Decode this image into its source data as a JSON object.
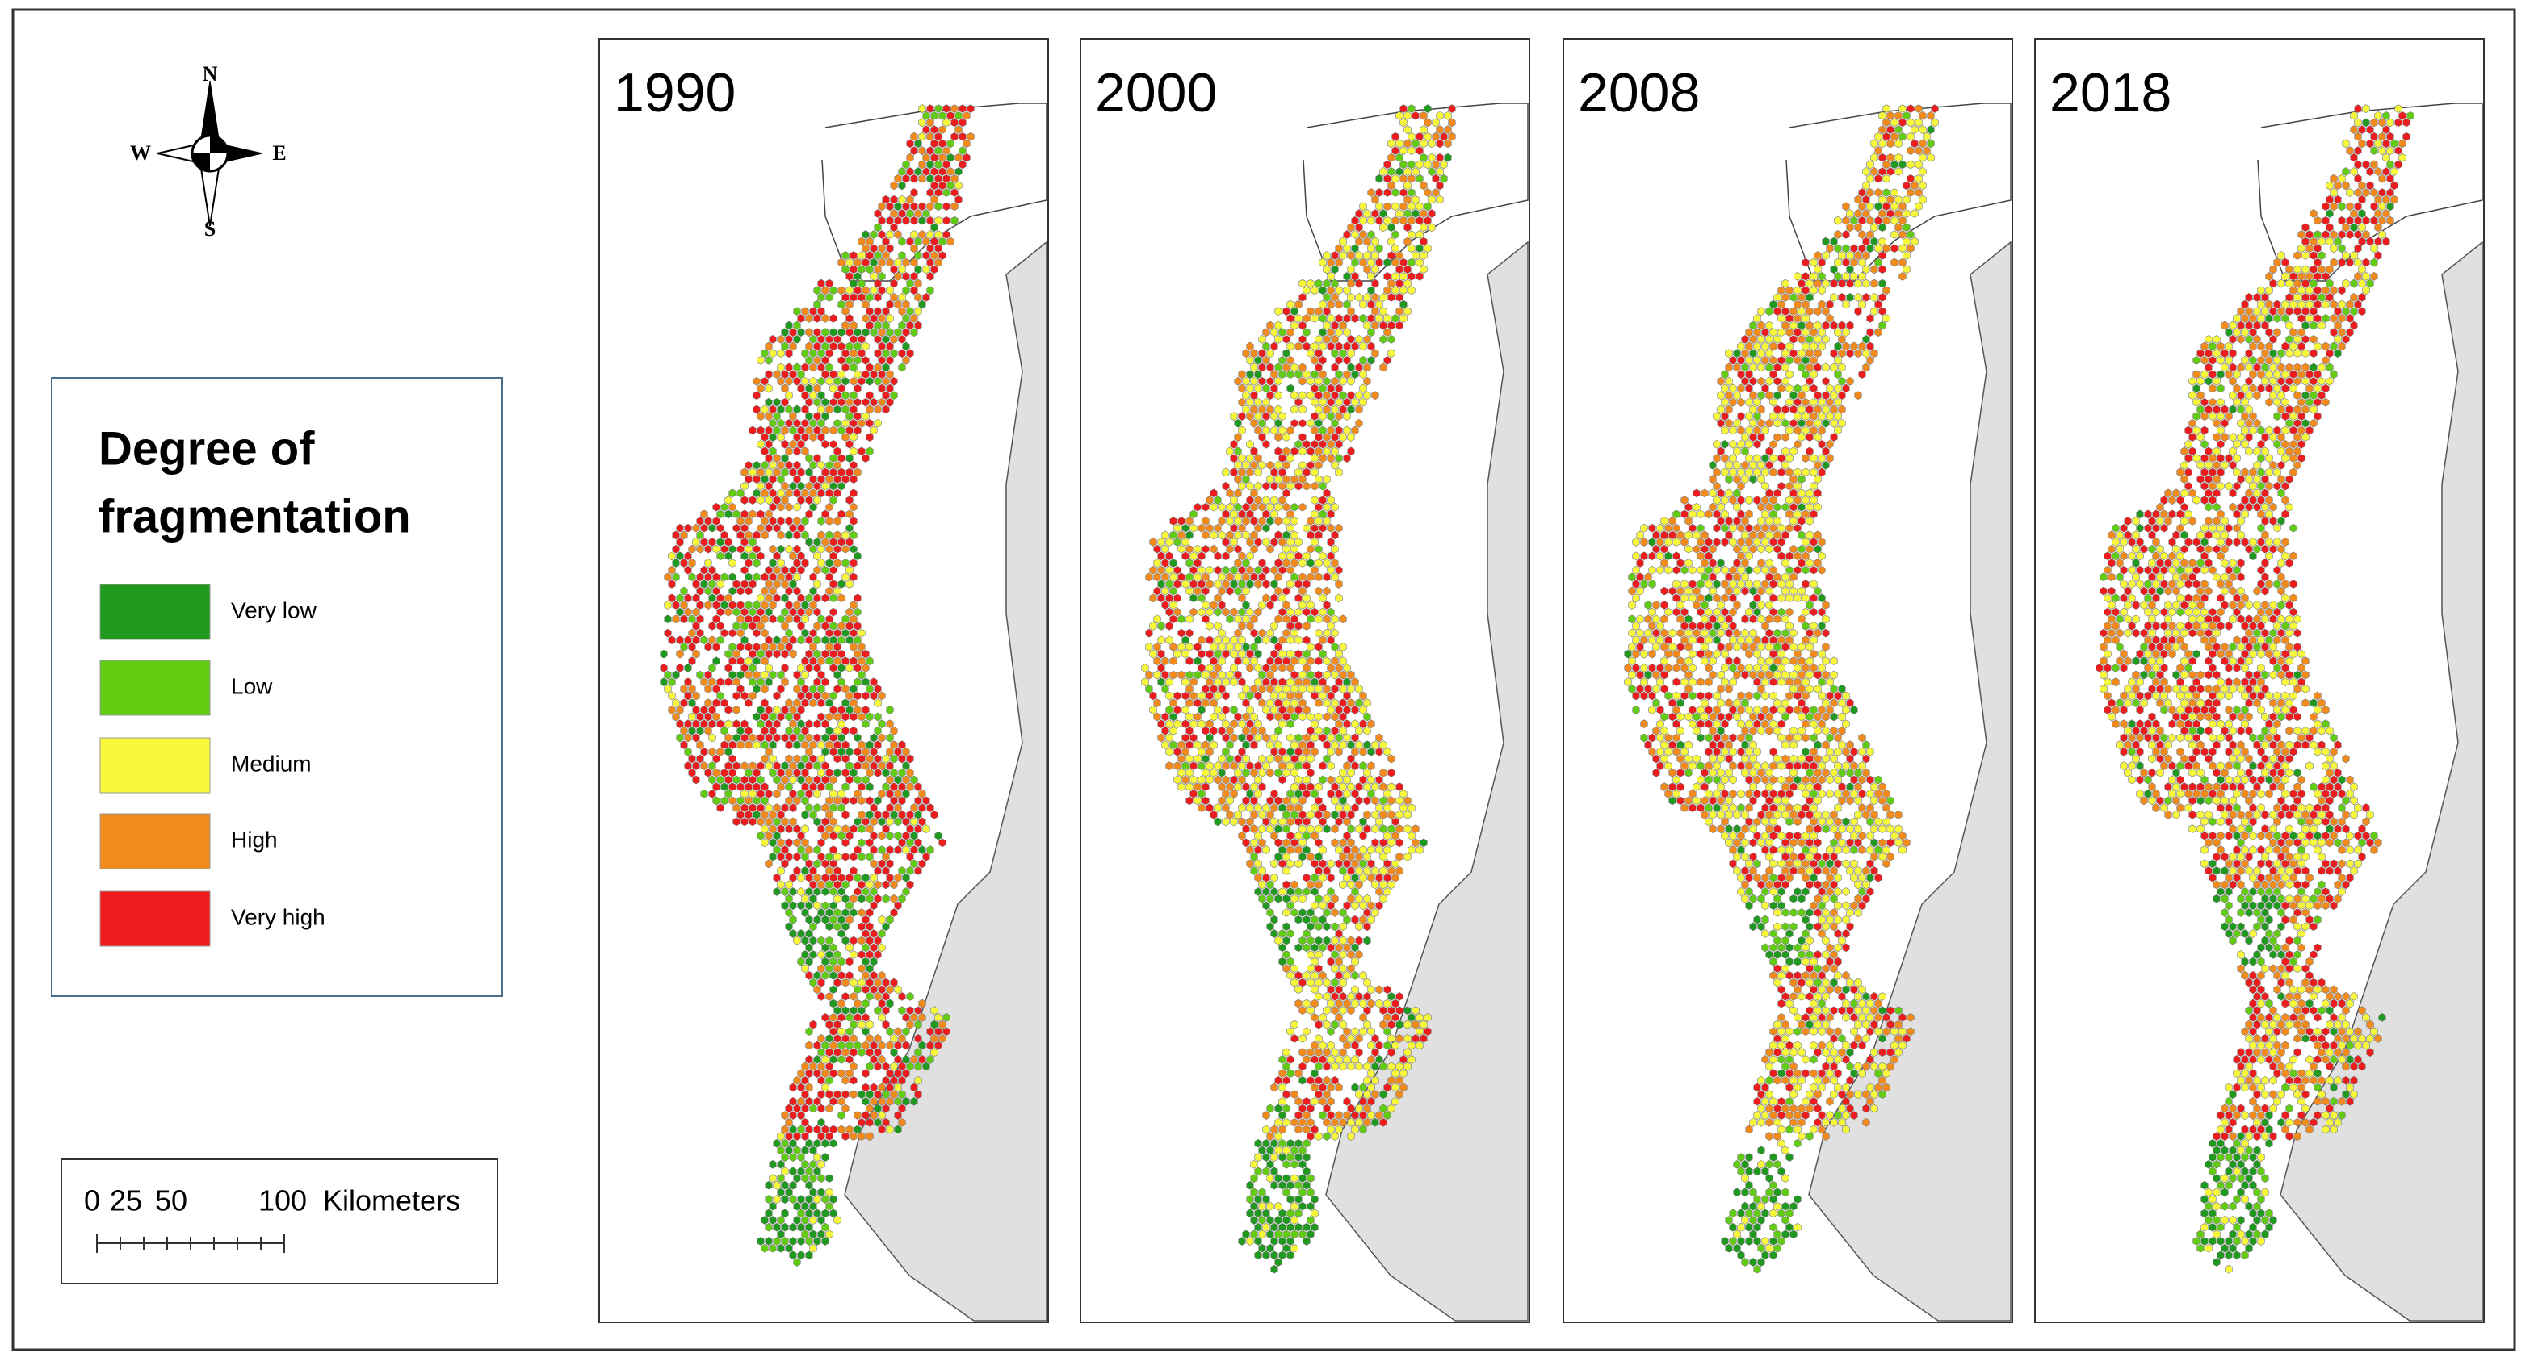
{
  "compass": {
    "north": "N",
    "south": "S",
    "east": "E",
    "west": "W"
  },
  "legend": {
    "title_lines": [
      "Degree of",
      "fragmentation"
    ],
    "items": [
      {
        "label": "Very low",
        "color": "#1f9a1f"
      },
      {
        "label": "Low",
        "color": "#62cc12"
      },
      {
        "label": "Medium",
        "color": "#f7f73c"
      },
      {
        "label": "High",
        "color": "#f38a1c"
      },
      {
        "label": "Very high",
        "color": "#ee1c1c"
      }
    ]
  },
  "scale_bar": {
    "labels": [
      "0",
      "25",
      "50",
      "100"
    ],
    "unit": "Kilometers"
  },
  "panels": [
    {
      "year": "1990"
    },
    {
      "year": "2000"
    },
    {
      "year": "2008"
    },
    {
      "year": "2018"
    }
  ]
}
